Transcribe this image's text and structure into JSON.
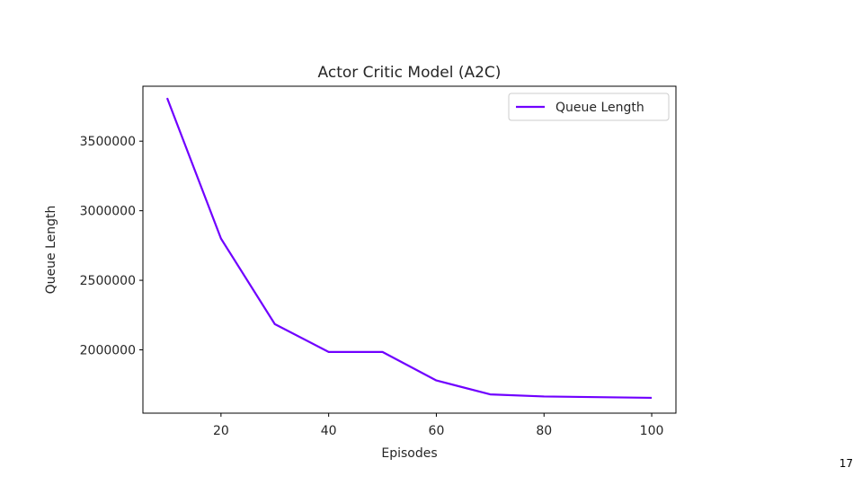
{
  "slide": {
    "page_number": "17"
  },
  "chart_data": {
    "type": "line",
    "title": "Actor Critic Model (A2C)",
    "xlabel": "Episodes",
    "ylabel": "Queue Length",
    "xlim": [
      5.5,
      104.5
    ],
    "ylim": [
      1545000,
      3895000
    ],
    "xticks": [
      20,
      40,
      60,
      80,
      100
    ],
    "yticks": [
      2000000,
      2500000,
      3000000,
      3500000
    ],
    "grid": false,
    "legend_position": "top-right",
    "series": [
      {
        "name": "Queue Length",
        "color": "#7000ff",
        "x": [
          10,
          20,
          30,
          40,
          50,
          60,
          70,
          80,
          90,
          100
        ],
        "y": [
          3810000,
          2800000,
          2185000,
          1985000,
          1985000,
          1780000,
          1680000,
          1665000,
          1660000,
          1655000
        ]
      }
    ]
  }
}
